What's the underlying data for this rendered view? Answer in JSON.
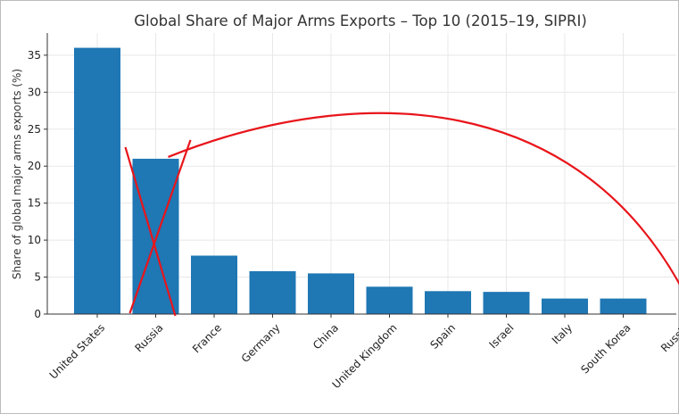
{
  "chart_data": {
    "type": "bar",
    "title": "Global Share of Major Arms Exports – Top 10 (2015–19, SIPRI)",
    "xlabel": "",
    "ylabel": "Share of global major arms exports (%)",
    "categories": [
      "United States",
      "Russia",
      "France",
      "Germany",
      "China",
      "United Kingdom",
      "Spain",
      "Israel",
      "Italy",
      "South Korea",
      "Russia"
    ],
    "values": [
      36,
      21,
      7.9,
      5.8,
      5.5,
      3.7,
      3.1,
      3.0,
      2.1,
      2.1,
      null
    ],
    "ylim": [
      0,
      38
    ],
    "yticks": [
      0,
      5,
      10,
      15,
      20,
      25,
      30,
      35
    ],
    "grid": true,
    "bar_color": "#1f77b4",
    "annotations": [
      {
        "type": "cross-out",
        "target_category_index": 1,
        "color": "#e8151b"
      },
      {
        "type": "curved-arrow",
        "from_category_index": 1,
        "to_category_index": 10,
        "color": "#e8151b"
      }
    ]
  }
}
